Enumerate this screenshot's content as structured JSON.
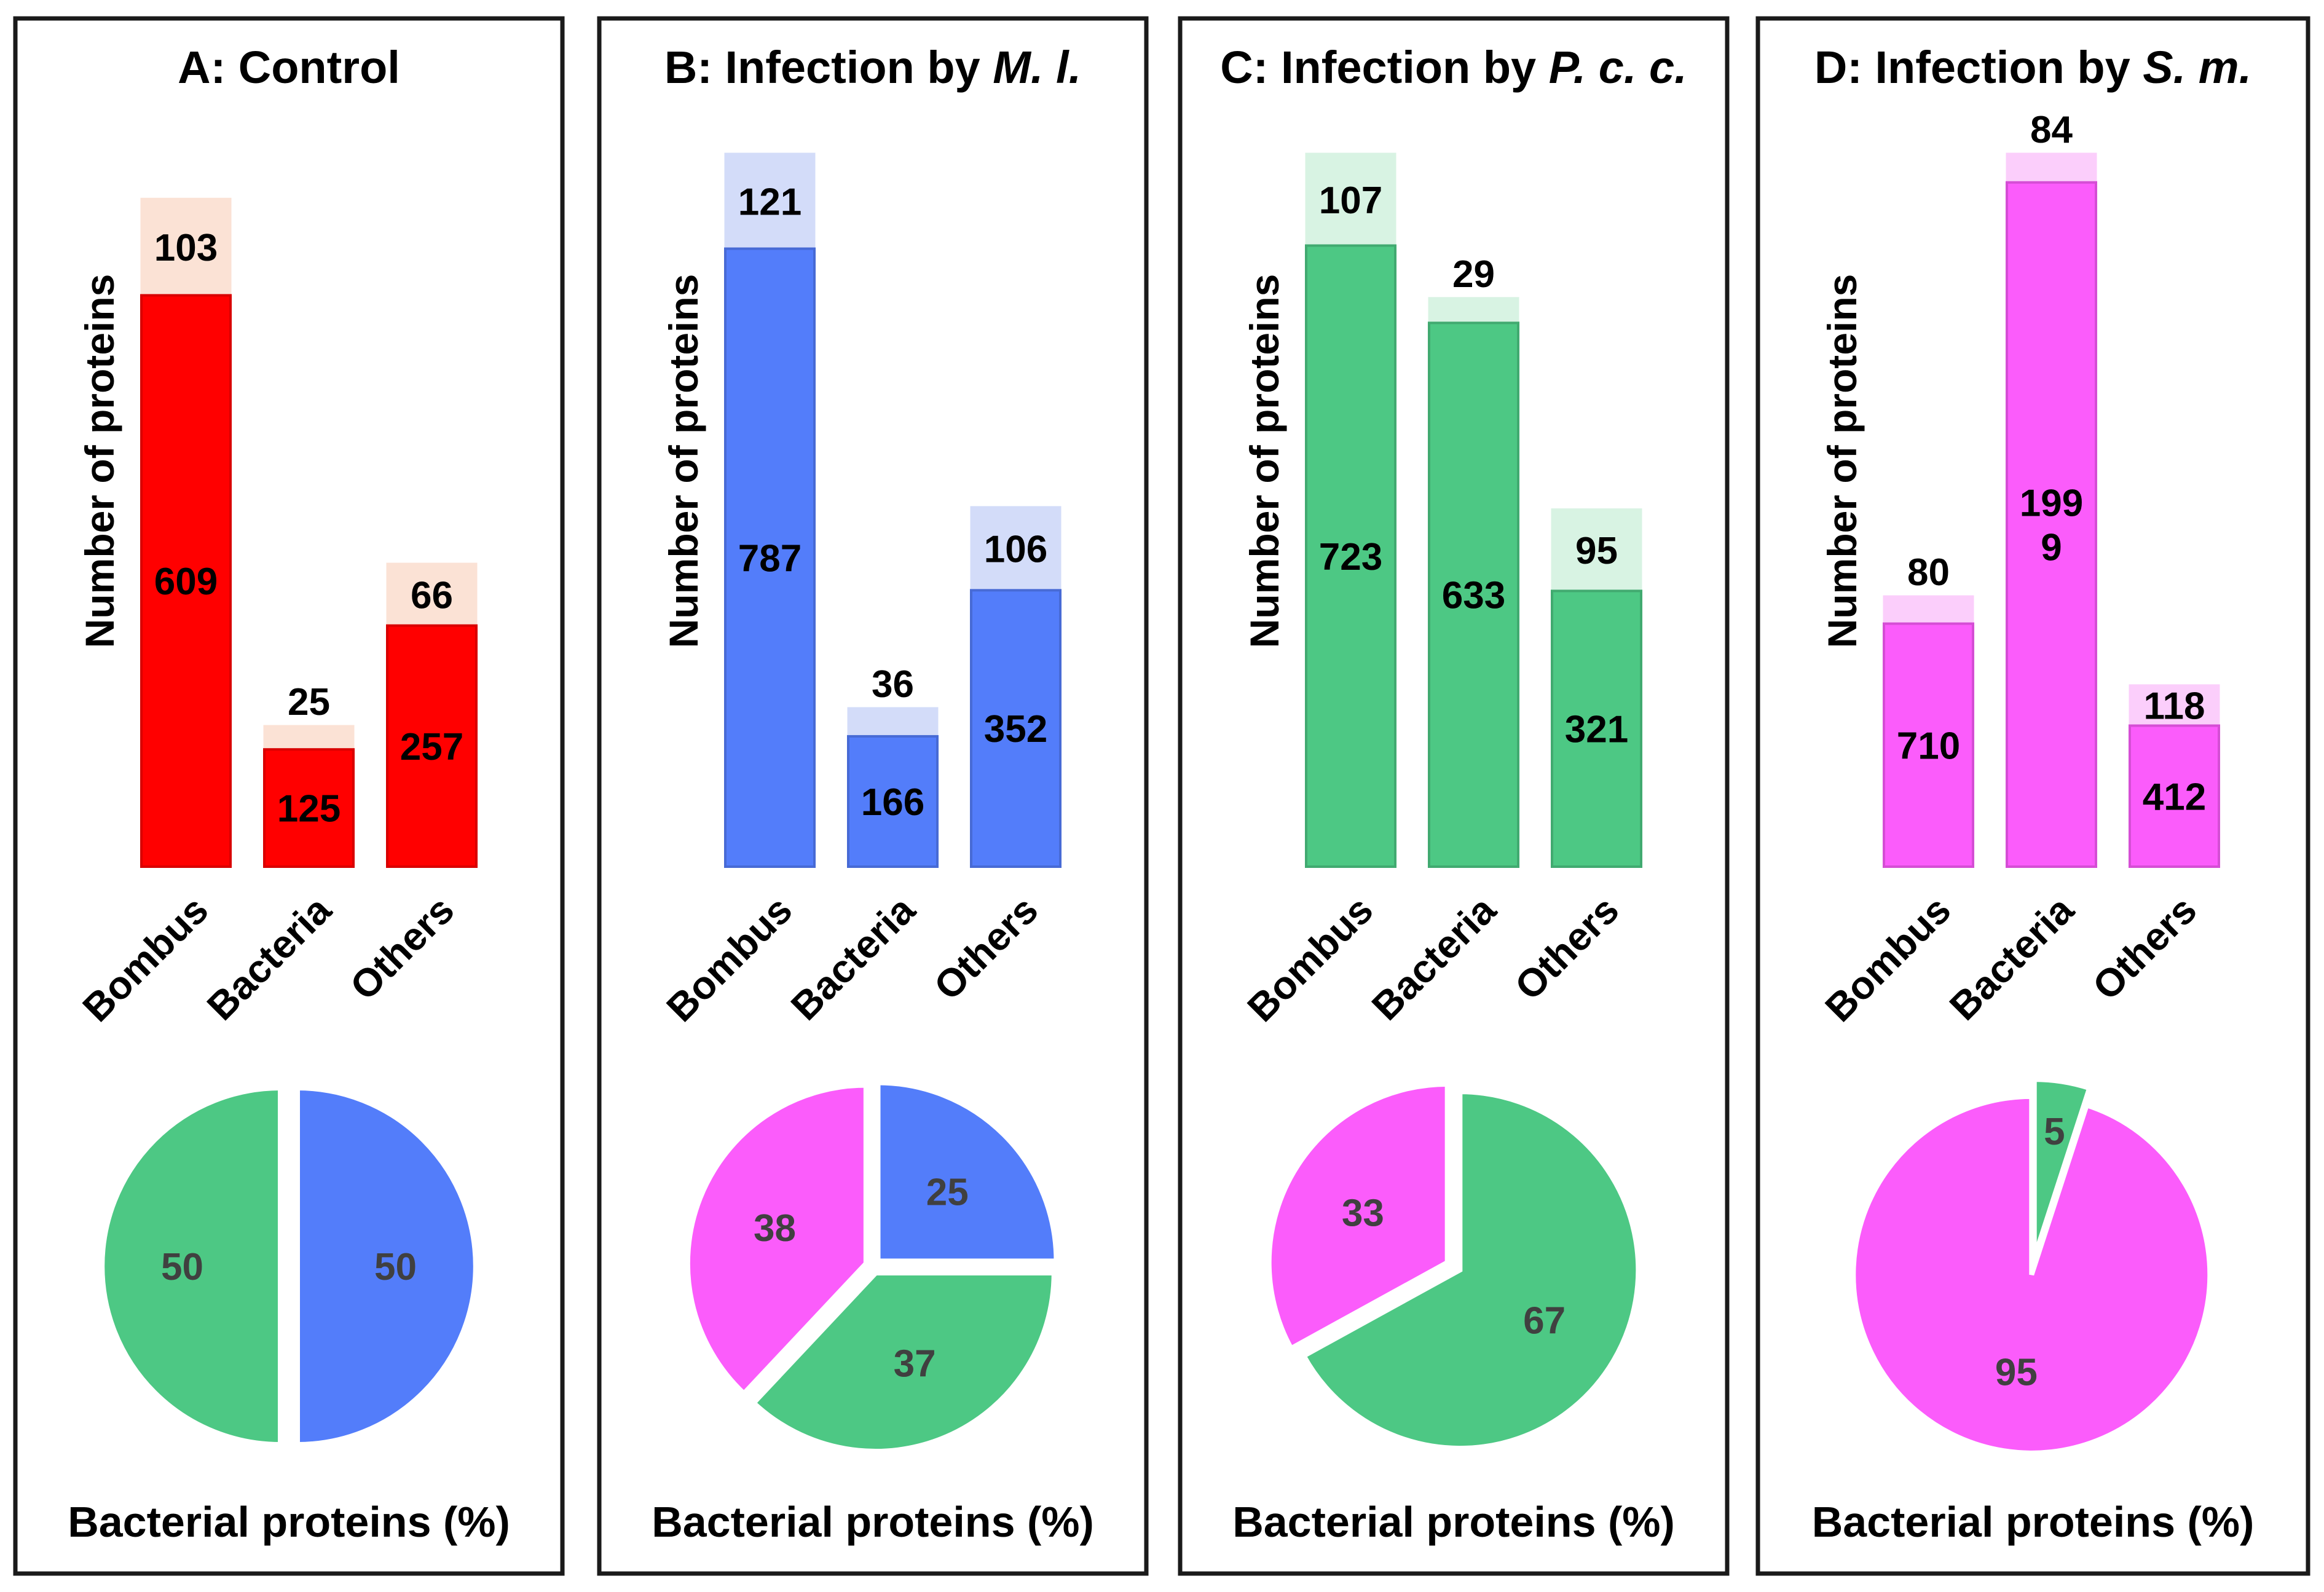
{
  "colors": {
    "green": "#4dc884",
    "blue": "#537dfa",
    "pink": "#fb5cfb"
  },
  "chart_data": [
    {
      "id": "A",
      "type": "bar",
      "title": "A: Control",
      "title_italic": "",
      "ylabel": "Number of proteins",
      "categories": [
        "Bombus",
        "Bacteria",
        "Others"
      ],
      "series": [
        {
          "name": "base",
          "values": [
            609,
            125,
            257
          ]
        },
        {
          "name": "top",
          "values": [
            103,
            25,
            66
          ]
        }
      ],
      "ylim": [
        0,
        760
      ],
      "color": "#ff0000",
      "light_color": "#fbe2d5",
      "label_positions": [
        "inside",
        "outside",
        "inside"
      ],
      "pie": {
        "type": "pie",
        "caption": "Bacterial proteins (%)",
        "slices": [
          {
            "label": "50",
            "value": 50,
            "color": "#537dfa"
          },
          {
            "label": "50",
            "value": 50,
            "color": "#4dc884"
          }
        ]
      }
    },
    {
      "id": "B",
      "type": "bar",
      "title": "B: Infection by ",
      "title_italic": "M. l.",
      "ylabel": "Number of proteins",
      "categories": [
        "Bombus",
        "Bacteria",
        "Others"
      ],
      "series": [
        {
          "name": "base",
          "values": [
            787,
            166,
            352
          ]
        },
        {
          "name": "top",
          "values": [
            121,
            36,
            106
          ]
        }
      ],
      "ylim": [
        0,
        908
      ],
      "color": "#537dfa",
      "light_color": "#d3dcf9",
      "label_positions": [
        "inside",
        "outside",
        "inside"
      ],
      "pie": {
        "type": "pie",
        "caption": "Bacterial proteins (%)",
        "slices": [
          {
            "label": "25",
            "value": 25,
            "color": "#537dfa"
          },
          {
            "label": "37",
            "value": 37,
            "color": "#4dc884"
          },
          {
            "label": "38",
            "value": 38,
            "color": "#fb5cfb"
          }
        ]
      }
    },
    {
      "id": "C",
      "type": "bar",
      "title": "C: Infection by ",
      "title_italic": "P. c. c.",
      "ylabel": "Number of proteins",
      "categories": [
        "Bombus",
        "Bacteria",
        "Others"
      ],
      "series": [
        {
          "name": "base",
          "values": [
            723,
            633,
            321
          ]
        },
        {
          "name": "top",
          "values": [
            107,
            29,
            95
          ]
        }
      ],
      "ylim": [
        0,
        830
      ],
      "color": "#4dc884",
      "light_color": "#d8f3e3",
      "label_positions": [
        "inside",
        "outside",
        "inside"
      ],
      "pie": {
        "type": "pie",
        "caption": "Bacterial proteins (%)",
        "slices": [
          {
            "label": "67",
            "value": 67,
            "color": "#4dc884"
          },
          {
            "label": "33",
            "value": 33,
            "color": "#fb5cfb"
          }
        ]
      }
    },
    {
      "id": "D",
      "type": "bar",
      "title": "D: Infection by ",
      "title_italic": "S. m.",
      "ylabel": "Number of proteins",
      "categories": [
        "Bombus",
        "Bacteria",
        "Others"
      ],
      "series": [
        {
          "name": "base",
          "values": [
            710,
            1999,
            412
          ]
        },
        {
          "name": "top",
          "values": [
            80,
            84,
            118
          ]
        }
      ],
      "ylim": [
        0,
        2083
      ],
      "color": "#fb5cfb",
      "light_color": "#fbcefb",
      "label_positions": [
        "outside",
        "outside",
        "inside"
      ],
      "base_label_lines": [
        [
          "710"
        ],
        [
          "199",
          "9"
        ],
        [
          "412"
        ]
      ],
      "pie": {
        "type": "pie",
        "caption": "Bacterial proteins (%)",
        "slices": [
          {
            "label": "5",
            "value": 5,
            "color": "#4dc884"
          },
          {
            "label": "95",
            "value": 95,
            "color": "#fb5cfb"
          }
        ]
      }
    }
  ]
}
